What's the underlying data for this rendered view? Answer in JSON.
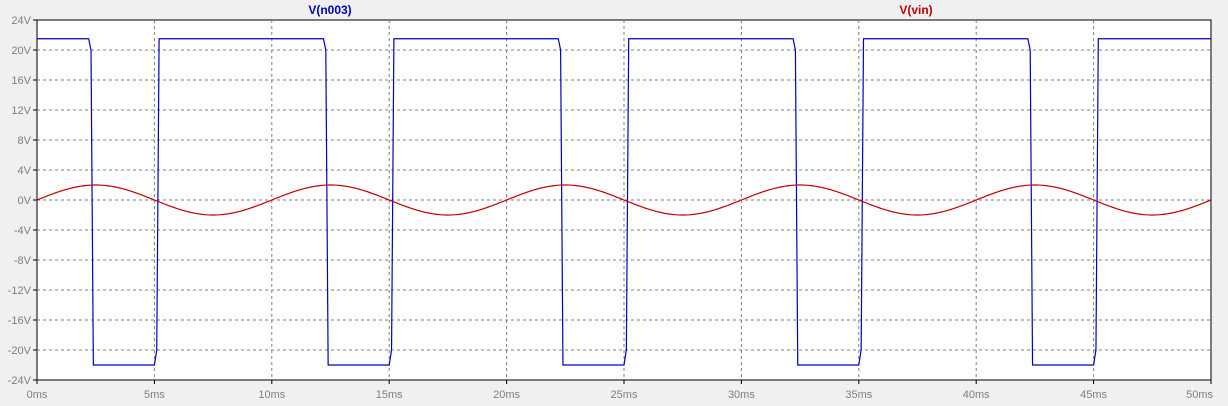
{
  "chart_data": {
    "type": "line",
    "title": "",
    "xlabel": "",
    "ylabel": "",
    "xlim": [
      0,
      50
    ],
    "ylim": [
      -24,
      24
    ],
    "grid": true,
    "x_unit": "ms",
    "y_unit": "V",
    "x_ticks": [
      "0ms",
      "5ms",
      "10ms",
      "15ms",
      "20ms",
      "25ms",
      "30ms",
      "35ms",
      "40ms",
      "45ms",
      "50ms"
    ],
    "y_ticks": [
      "24V",
      "20V",
      "16V",
      "12V",
      "8V",
      "4V",
      "0V",
      "-4V",
      "-8V",
      "-12V",
      "-16V",
      "-20V",
      "-24V"
    ],
    "background": "#ffffff",
    "grid_color": "#808080",
    "series": [
      {
        "name": "V(n003)",
        "color": "#0000c8",
        "x": [
          0,
          2.2,
          2.3,
          2.4,
          5.0,
          5.1,
          5.2,
          12.2,
          12.3,
          12.4,
          15.0,
          15.1,
          15.2,
          22.2,
          22.3,
          22.4,
          25.0,
          25.1,
          25.2,
          32.2,
          32.3,
          32.4,
          35.0,
          35.1,
          35.2,
          42.2,
          42.3,
          42.4,
          45.0,
          45.1,
          45.2,
          50
        ],
        "y": [
          21.5,
          21.5,
          20,
          -22,
          -22,
          -20,
          21.5,
          21.5,
          20,
          -22,
          -22,
          -20,
          21.5,
          21.5,
          20,
          -22,
          -22,
          -20,
          21.5,
          21.5,
          20,
          -22,
          -22,
          -20,
          21.5,
          21.5,
          20,
          -22,
          -22,
          -20,
          21.5,
          21.5
        ]
      },
      {
        "name": "V(vin)",
        "color": "#c80000",
        "function": "sine",
        "amplitude": 2,
        "period": 10,
        "offset": 0
      }
    ]
  }
}
